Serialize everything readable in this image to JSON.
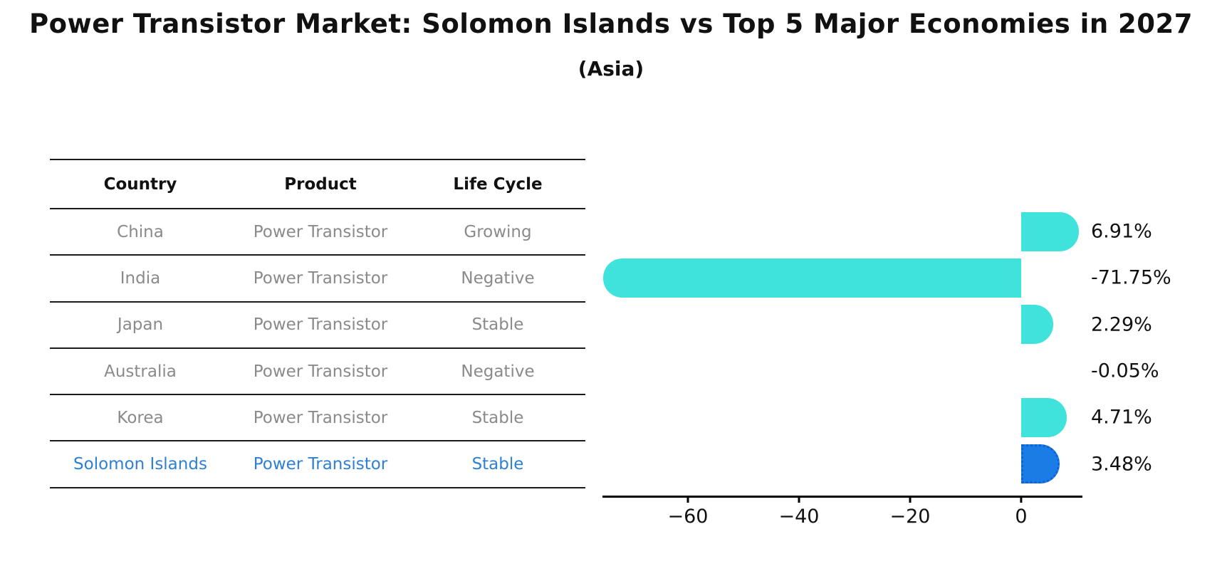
{
  "header": {
    "title": "Power Transistor Market: Solomon Islands vs Top 5 Major Economies in 2027",
    "subtitle": "(Asia)"
  },
  "table": {
    "columns": [
      "Country",
      "Product",
      "Life Cycle"
    ],
    "rows": [
      {
        "country": "China",
        "product": "Power Transistor",
        "life_cycle": "Growing",
        "highlight": false
      },
      {
        "country": "India",
        "product": "Power Transistor",
        "life_cycle": "Negative",
        "highlight": false
      },
      {
        "country": "Japan",
        "product": "Power Transistor",
        "life_cycle": "Stable",
        "highlight": false
      },
      {
        "country": "Australia",
        "product": "Power Transistor",
        "life_cycle": "Negative",
        "highlight": false
      },
      {
        "country": "Korea",
        "product": "Power Transistor",
        "life_cycle": "Stable",
        "highlight": false
      },
      {
        "country": "Solomon Islands",
        "product": "Power Transistor",
        "life_cycle": "Stable",
        "highlight": true
      }
    ]
  },
  "chart_data": {
    "type": "bar",
    "orientation": "horizontal",
    "title": "Power Transistor Market: Solomon Islands vs Top 5 Major Economies in 2027",
    "subtitle": "(Asia)",
    "categories": [
      "China",
      "India",
      "Japan",
      "Australia",
      "Korea",
      "Solomon Islands"
    ],
    "values": [
      6.91,
      -71.75,
      2.29,
      -0.05,
      4.71,
      3.48
    ],
    "value_labels": [
      "6.91%",
      "-71.75%",
      "2.29%",
      "-0.05%",
      "4.71%",
      "3.48%"
    ],
    "xticks": [
      -60,
      -40,
      -20,
      0
    ],
    "xtick_labels": [
      "−60",
      "−40",
      "−20",
      "0"
    ],
    "xlim": [
      -75.5,
      11
    ],
    "grid": false,
    "legend": false,
    "bar_color": "#40E3DC",
    "highlight_bar_color": "#1B7CE6",
    "highlight_index": 5
  },
  "colors": {
    "title_text": "#111111",
    "table_text": "#8a8a8a",
    "table_header_text": "#111111",
    "highlight_text": "#2E80D4",
    "axis": "#000000"
  }
}
